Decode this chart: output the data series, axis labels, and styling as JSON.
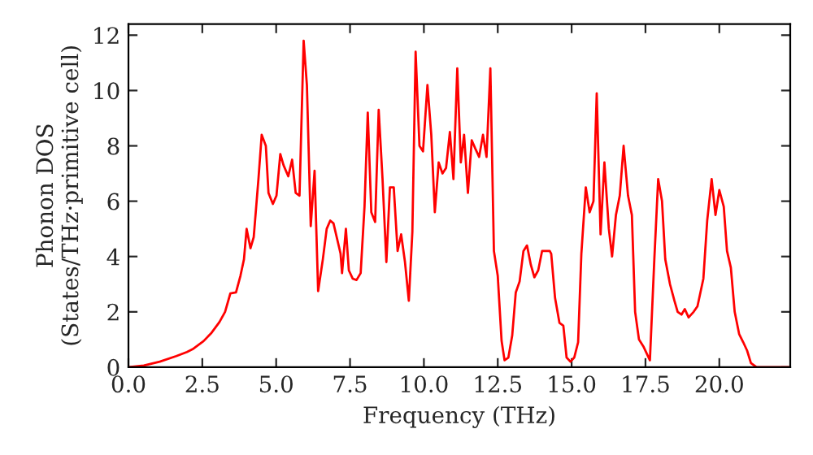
{
  "chart_data": {
    "type": "line",
    "xlabel": "Frequency (THz)",
    "ylabel": "Phonon DOS\n(States/THz·primitive cell)",
    "xlim": [
      0,
      22.4
    ],
    "ylim": [
      0,
      12.4
    ],
    "xticks": [
      {
        "value": 0,
        "label": "0.0"
      },
      {
        "value": 2.5,
        "label": "2.5"
      },
      {
        "value": 5,
        "label": "5.0"
      },
      {
        "value": 7.5,
        "label": "7.5"
      },
      {
        "value": 10,
        "label": "10.0"
      },
      {
        "value": 12.5,
        "label": "12.5"
      },
      {
        "value": 15,
        "label": "15.0"
      },
      {
        "value": 17.5,
        "label": "17.5"
      },
      {
        "value": 20,
        "label": "20.0"
      }
    ],
    "yticks": [
      0,
      2,
      4,
      6,
      8,
      10,
      12
    ],
    "grid": false,
    "legend": false,
    "series": [
      {
        "color": "#ff0000",
        "x": [
          0,
          0.52,
          1.06,
          1.62,
          1.98,
          2.17,
          2.54,
          2.81,
          3.08,
          3.27,
          3.45,
          3.64,
          3.79,
          3.91,
          4.0,
          4.13,
          4.24,
          4.4,
          4.51,
          4.65,
          4.74,
          4.89,
          5.01,
          5.14,
          5.25,
          5.41,
          5.54,
          5.66,
          5.79,
          5.93,
          6.04,
          6.17,
          6.3,
          6.42,
          6.58,
          6.71,
          6.83,
          6.94,
          7.18,
          7.23,
          7.36,
          7.46,
          7.59,
          7.72,
          7.86,
          7.99,
          8.1,
          8.22,
          8.35,
          8.47,
          8.6,
          8.73,
          8.85,
          8.98,
          9.11,
          9.23,
          9.36,
          9.49,
          9.61,
          9.72,
          9.85,
          9.97,
          10.12,
          10.25,
          10.37,
          10.5,
          10.63,
          10.75,
          10.88,
          11.0,
          11.13,
          11.25,
          11.36,
          11.49,
          11.62,
          11.74,
          11.87,
          12.0,
          12.12,
          12.25,
          12.37,
          12.5,
          12.63,
          12.73,
          12.86,
          12.99,
          13.11,
          13.24,
          13.37,
          13.49,
          13.62,
          13.74,
          13.87,
          14.0,
          14.26,
          14.31,
          14.44,
          14.59,
          14.72,
          14.83,
          14.96,
          15.09,
          15.22,
          15.33,
          15.48,
          15.61,
          15.74,
          15.85,
          15.98,
          16.11,
          16.26,
          16.37,
          16.5,
          16.63,
          16.76,
          16.91,
          17.04,
          17.15,
          17.28,
          17.43,
          17.65,
          17.8,
          17.93,
          18.06,
          18.17,
          18.33,
          18.48,
          18.59,
          18.72,
          18.83,
          18.96,
          19.13,
          19.26,
          19.46,
          19.59,
          19.74,
          19.87,
          20.0,
          20.15,
          20.26,
          20.39,
          20.52,
          20.67,
          20.81,
          20.94,
          21.07,
          21.26,
          22.37
        ],
        "values": [
          0,
          0.06,
          0.2,
          0.4,
          0.55,
          0.65,
          0.94,
          1.24,
          1.63,
          2.0,
          2.67,
          2.7,
          3.3,
          3.9,
          5.0,
          4.3,
          4.7,
          6.8,
          8.4,
          8.0,
          6.3,
          5.9,
          6.2,
          7.7,
          7.3,
          6.9,
          7.5,
          6.3,
          6.2,
          11.8,
          10.2,
          5.1,
          7.1,
          2.75,
          3.9,
          5.0,
          5.3,
          5.2,
          4.1,
          3.4,
          5.0,
          3.5,
          3.2,
          3.15,
          3.4,
          5.8,
          9.2,
          5.6,
          5.25,
          9.3,
          6.8,
          3.8,
          6.5,
          6.5,
          4.2,
          4.8,
          3.8,
          2.4,
          4.9,
          11.4,
          8.0,
          7.8,
          10.2,
          8.4,
          5.6,
          7.4,
          7.0,
          7.2,
          8.5,
          6.8,
          10.8,
          7.4,
          8.4,
          6.3,
          8.2,
          7.9,
          7.6,
          8.4,
          7.6,
          10.8,
          4.2,
          3.3,
          0.95,
          0.25,
          0.35,
          1.15,
          2.7,
          3.1,
          4.2,
          4.4,
          3.7,
          3.25,
          3.5,
          4.2,
          4.2,
          4.1,
          2.5,
          1.6,
          1.5,
          0.35,
          0.2,
          0.35,
          0.9,
          4.1,
          6.5,
          5.6,
          6.0,
          9.9,
          4.8,
          7.4,
          5.0,
          4.0,
          5.5,
          6.2,
          8.0,
          6.2,
          5.5,
          2.0,
          1.0,
          0.75,
          0.25,
          3.9,
          6.8,
          6.0,
          3.9,
          3.0,
          2.4,
          2.0,
          1.9,
          2.1,
          1.8,
          2.0,
          2.2,
          3.2,
          5.3,
          6.8,
          5.5,
          6.4,
          5.8,
          4.2,
          3.6,
          2.0,
          1.2,
          0.9,
          0.6,
          0.15,
          0.0,
          0.0
        ]
      }
    ]
  }
}
